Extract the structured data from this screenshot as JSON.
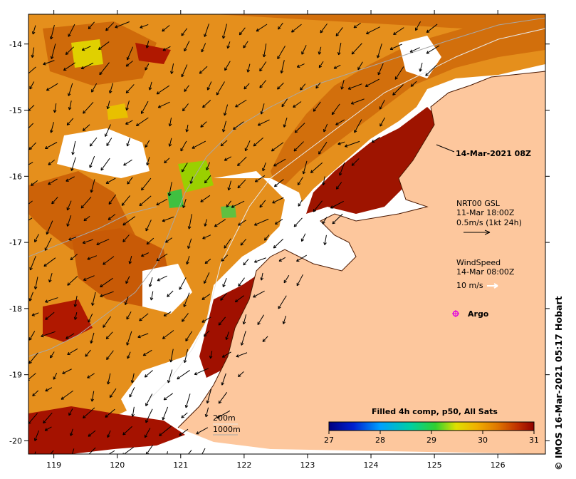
{
  "map": {
    "title": "14-Mar-2021 08Z",
    "x_ticks": [
      "119",
      "120",
      "121",
      "122",
      "123",
      "124",
      "125",
      "126"
    ],
    "y_ticks": [
      "-14",
      "-15",
      "-16",
      "-17",
      "-18",
      "-19",
      "-20"
    ],
    "x_range": [
      118.6,
      126.75
    ],
    "y_range": [
      -20.2,
      -13.55
    ],
    "colors": {
      "land": "#fdc79d",
      "nodata": "#ffffff",
      "sst_low": "#e08a00",
      "sst_mid": "#d06000",
      "sst_high": "#a01000"
    }
  },
  "current_legend": {
    "line1": "NRT00 GSL",
    "line2": "11-Mar 18:00Z",
    "line3": "0.5m/s (1kt 24h)"
  },
  "wind_legend": {
    "line1": "WindSpeed",
    "line2": "14-Mar 08:00Z",
    "line3": "10 m/s"
  },
  "argo_legend": {
    "label": "Argo",
    "color": "#e000e0"
  },
  "depth_legend": {
    "contour1": "200m",
    "contour2": "1000m"
  },
  "colorbar": {
    "title": "Filled 4h comp, p50, All Sats",
    "ticks": [
      "27",
      "28",
      "29",
      "30",
      "31"
    ],
    "min": 27,
    "max": 31
  },
  "credit": "© IMOS 16-Mar-2021 05:17 Hobart"
}
